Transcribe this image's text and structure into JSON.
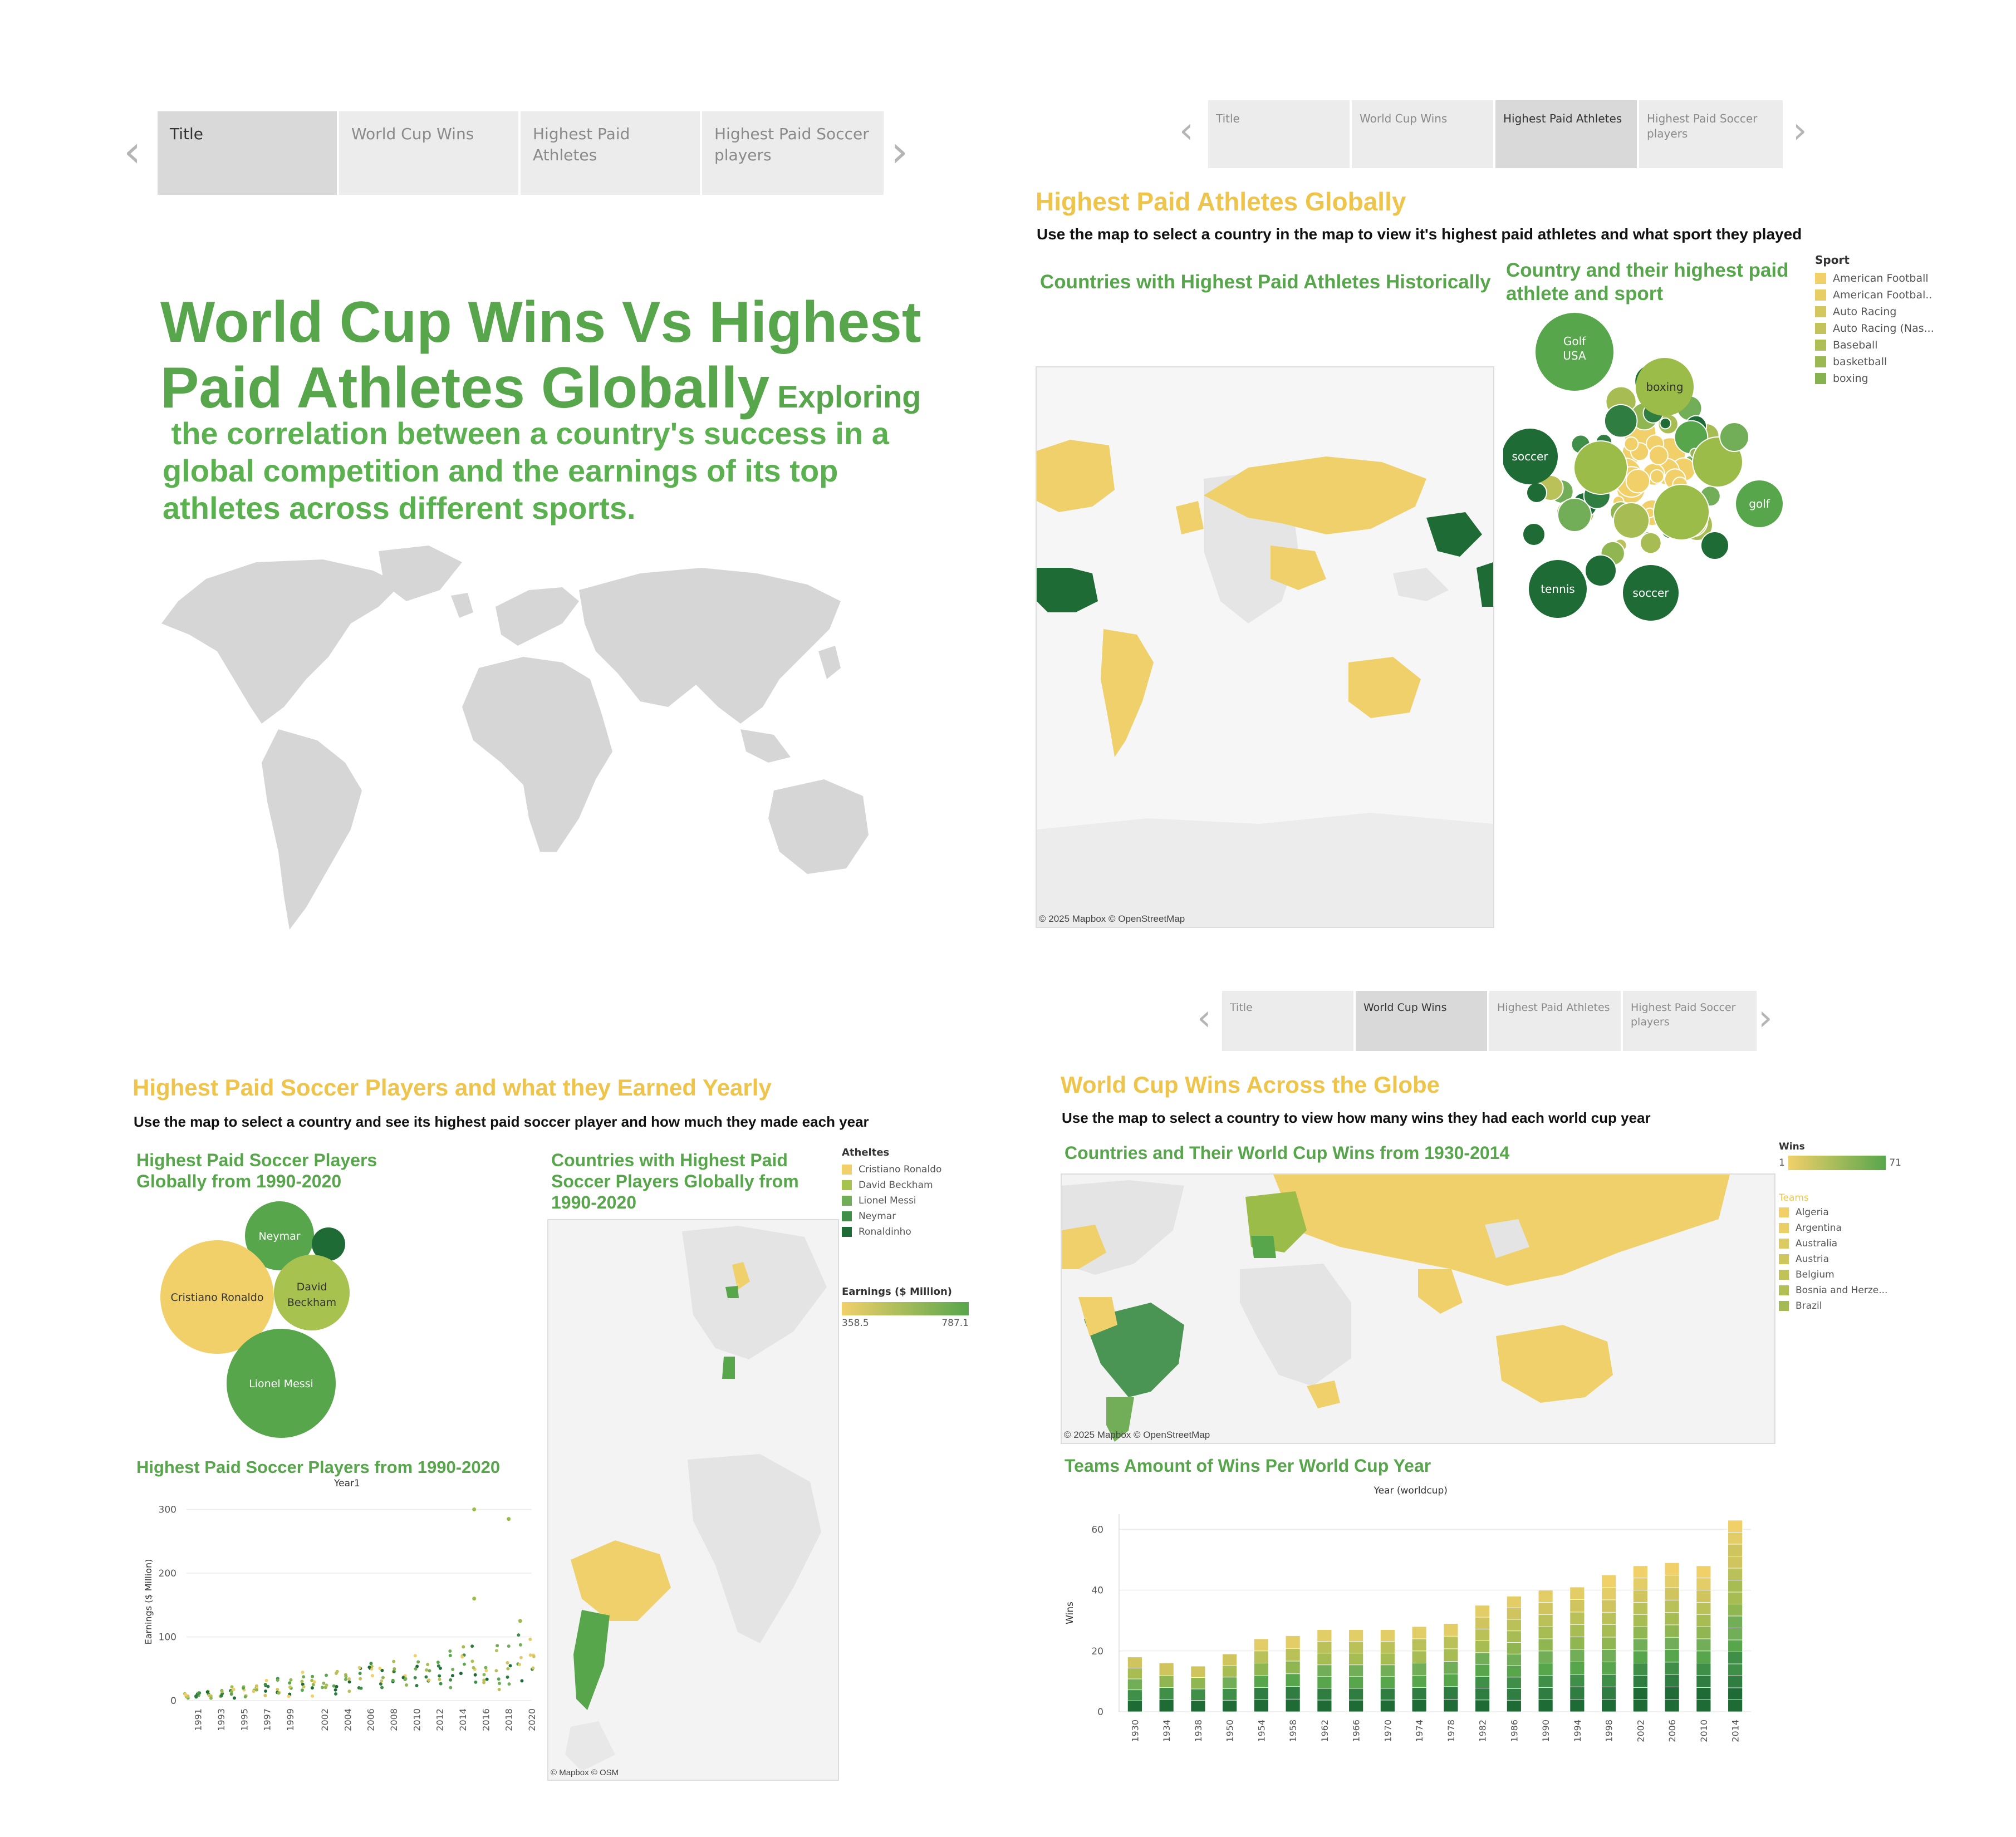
{
  "nav": {
    "tabs": [
      "Title",
      "World Cup Wins",
      "Highest Paid Athletes",
      "Highest Paid Soccer players"
    ],
    "title_tab_labels": [
      "Title",
      "World Cup Wins",
      "Highest Paid Athletes",
      "Highest Paid Soccer players"
    ]
  },
  "colors": {
    "yellow": "#efc44b",
    "green": "#58a64c",
    "dark_green": "#1e6b36",
    "light_grey": "#d9d9d9"
  },
  "title_panel": {
    "heading": "World Cup Wins Vs Highest Paid Athletes Globally",
    "heading_line1": "World Cup Wins Vs Highest",
    "heading_line2": "Paid Athletes Globally",
    "sub_first": "Exploring",
    "sub_rest_1": " the correlation between a country's success in a",
    "sub_rest_2": "global competition and the earnings of its top",
    "sub_rest_3": "athletes across different sports."
  },
  "athletes_panel": {
    "title": "Highest Paid Athletes Globally",
    "instruction": "Use the map to select a country in the map to view it's highest paid athletes and what sport they played",
    "map_title": "Countries with Highest Paid Athletes Historically",
    "bubble_title": "Country and their highest paid athlete and sport",
    "map_credit": "© 2025 Mapbox © OpenStreetMap",
    "legend_title": "Sport",
    "legend": [
      "American Football",
      "American Footbal..",
      "Auto Racing",
      "Auto Racing (Nas...",
      "Baseball",
      "basketball",
      "boxing"
    ],
    "bubble_labels": [
      "Golf",
      "USA",
      "boxing",
      "soccer",
      "golf",
      "tennis",
      "soccer"
    ]
  },
  "soccer_panel": {
    "title": "Highest Paid Soccer Players and what they Earned Yearly",
    "instruction": "Use the map to select a country and see its highest paid soccer player and how much they made each year",
    "bubble_title_1": "Highest Paid Soccer Players",
    "bubble_title_2": "Globally from 1990-2020",
    "map_title_1": "Countries with Highest Paid",
    "map_title_2": "Soccer Players Globally from",
    "map_title_3": "1990-2020",
    "legend_title": "Atheltes",
    "legend": [
      "Cristiano Ronaldo",
      "David Beckham",
      "Lionel Messi",
      "Neymar",
      "Ronaldinho"
    ],
    "earnings_title": "Earnings ($ Million)",
    "earnings_min": "358.5",
    "earnings_max": "787.1",
    "map_credit": "© Mapbox © OSM",
    "bubbles": [
      "Neymar",
      "Cristiano Ronaldo",
      "David Beckham",
      "Lionel Messi"
    ],
    "scatter_title": "Highest Paid Soccer Players from 1990-2020",
    "scatter_header": "Year1",
    "scatter_ylabel": "Earnings ($ Million)"
  },
  "worldcup_panel": {
    "title": "World Cup Wins Across the Globe",
    "instruction": "Use the map to select a country to view how many wins they had each world cup year",
    "map_title": "Countries and Their World Cup Wins from 1930-2014",
    "map_credit": "© 2025 Mapbox © OpenStreetMap",
    "wins_title": "Wins",
    "wins_min": "1",
    "wins_max": "71",
    "teams_title": "Teams",
    "teams": [
      "Algeria",
      "Argentina",
      "Australia",
      "Austria",
      "Belgium",
      "Bosnia and Herze...",
      "Brazil"
    ],
    "bar_title": "Teams Amount of Wins Per World Cup Year",
    "bar_header": "Year (worldcup)",
    "bar_ylabel": "Wins"
  },
  "chart_data": [
    {
      "type": "bar",
      "title": "Teams Amount of Wins Per World Cup Year",
      "xlabel": "Year (worldcup)",
      "ylabel": "Wins",
      "categories": [
        "1930",
        "1934",
        "1938",
        "1950",
        "1954",
        "1958",
        "1962",
        "1966",
        "1970",
        "1974",
        "1978",
        "1982",
        "1986",
        "1990",
        "1994",
        "1998",
        "2002",
        "2006",
        "2010",
        "2014"
      ],
      "values": [
        18,
        16,
        15,
        19,
        24,
        25,
        27,
        27,
        27,
        28,
        29,
        35,
        38,
        40,
        41,
        45,
        48,
        49,
        48,
        63
      ],
      "ylim": [
        0,
        65
      ],
      "yticks": [
        0,
        20,
        40,
        60
      ],
      "stacked": true
    },
    {
      "type": "scatter",
      "title": "Highest Paid Soccer Players from 1990-2020",
      "xlabel": "Year1",
      "ylabel": "Earnings ($ Million)",
      "xticks": [
        "1991",
        "1993",
        "1995",
        "1997",
        "1999",
        "2002",
        "2004",
        "2006",
        "2008",
        "2010",
        "2012",
        "2014",
        "2016",
        "2018",
        "2020"
      ],
      "ylim": [
        0,
        310
      ],
      "yticks": [
        0,
        100,
        200,
        300
      ],
      "outliers": [
        {
          "x": "2015",
          "y": 300
        },
        {
          "x": "2018",
          "y": 285
        },
        {
          "x": "2015",
          "y": 160
        },
        {
          "x": "2019",
          "y": 125
        }
      ]
    }
  ]
}
